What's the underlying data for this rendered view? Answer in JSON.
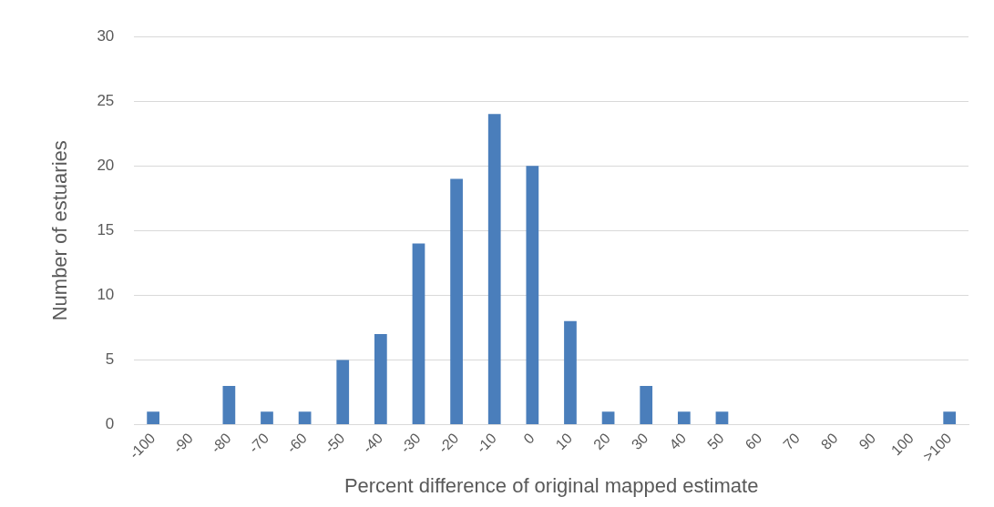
{
  "chart_data": {
    "type": "bar",
    "xlabel": "Percent difference of original mapped estimate",
    "ylabel": "Number of estuaries",
    "categories": [
      "-100",
      "-90",
      "-80",
      "-70",
      "-60",
      "-50",
      "-40",
      "-30",
      "-20",
      "-10",
      "0",
      "10",
      "20",
      "30",
      "40",
      "50",
      "60",
      "70",
      "80",
      "90",
      "100",
      ">100"
    ],
    "values": [
      1,
      0,
      3,
      1,
      1,
      5,
      7,
      14,
      19,
      24,
      20,
      8,
      1,
      3,
      1,
      1,
      0,
      0,
      0,
      0,
      0,
      1
    ],
    "color": "#4a7ebb",
    "ylim": [
      0,
      30
    ],
    "yticks": [
      0,
      5,
      10,
      15,
      20,
      25,
      30
    ],
    "grid": "y",
    "legend": false
  }
}
